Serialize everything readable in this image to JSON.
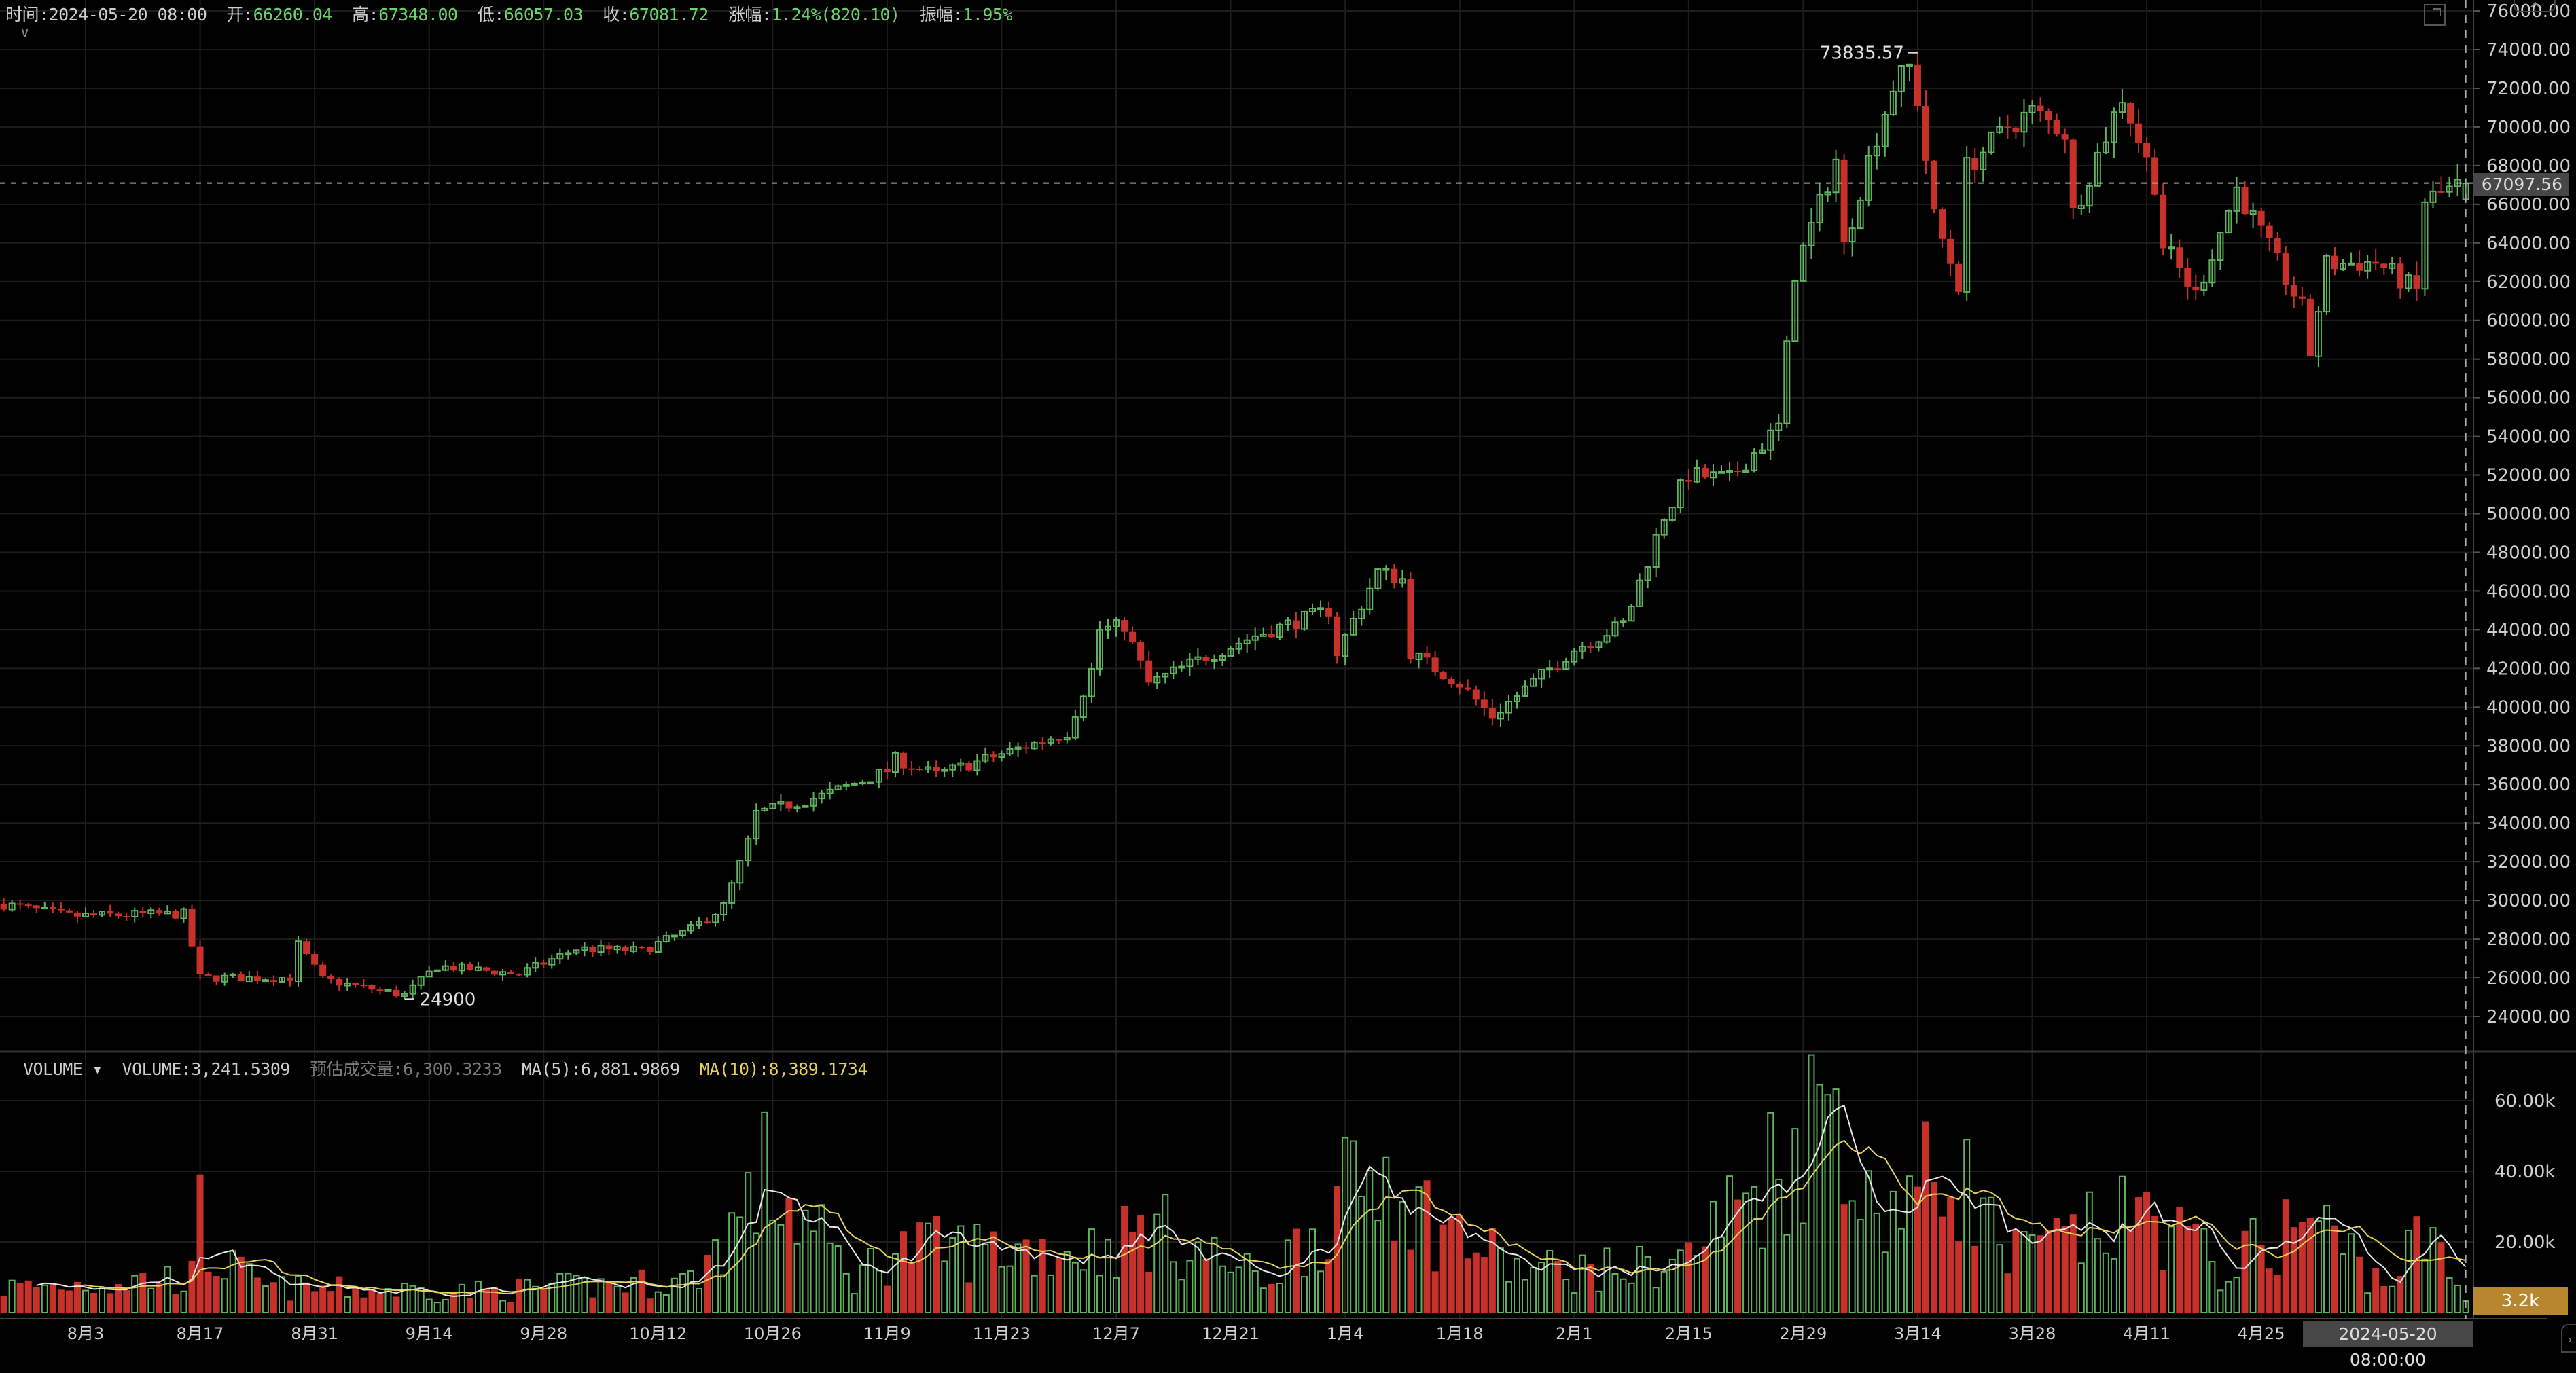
{
  "header": {
    "time_label": "时间:",
    "time": "2024-05-20 08:00",
    "open_label": "开:",
    "open": "66260.04",
    "high_label": "高:",
    "high": "67348.00",
    "low_label": "低:",
    "low": "66057.03",
    "close_label": "收:",
    "close": "67081.72",
    "change_label": "涨幅:",
    "change": "1.24%(820.10)",
    "amplitude_label": "振幅:",
    "amplitude": "1.95%"
  },
  "volume_header": {
    "indicator": "VOLUME",
    "volume": "VOLUME:3,241.5309",
    "estimated": "预估成交量:6,300.3233",
    "ma5": "MA(5):6,881.9869",
    "ma10": "MA(10):8,389.1734"
  },
  "colors": {
    "up": "#5fb35f",
    "down": "#c8302a",
    "ma5": "#e8e8e8",
    "ma10": "#e6d25a",
    "grid": "#1d1d1d",
    "volume_badge": "#b8862f"
  },
  "icons": {
    "collapse": "chevron-down-icon",
    "expand": "fullscreen-icon",
    "top_tab": "chevron-up-icon",
    "right_tab": "chevron-right-icon"
  },
  "crosshair": {
    "price": "67097.56",
    "date": "2024-05-20 08:00:00",
    "volume": "3.2k"
  },
  "chart_data": {
    "type": "candlestick",
    "interval": "1 day",
    "price_axis": {
      "ticks": [
        "76000.00",
        "74000.00",
        "72000.00",
        "70000.00",
        "68000.00",
        "66000.00",
        "64000.00",
        "62000.00",
        "60000.00",
        "58000.00",
        "56000.00",
        "54000.00",
        "52000.00",
        "50000.00",
        "48000.00",
        "46000.00",
        "44000.00",
        "42000.00",
        "40000.00",
        "38000.00",
        "36000.00",
        "34000.00",
        "32000.00",
        "30000.00",
        "28000.00",
        "26000.00",
        "24000.00"
      ]
    },
    "volume_axis": {
      "ticks": [
        "60.00k",
        "40.00k",
        "20.00k"
      ]
    },
    "date_axis": {
      "ticks": [
        "8月3",
        "8月17",
        "8月31",
        "9月14",
        "9月28",
        "10月12",
        "10月26",
        "11月9",
        "11月23",
        "12月7",
        "12月21",
        "1月4",
        "1月18",
        "2月1",
        "2月15",
        "2月29",
        "3月14",
        "3月28",
        "4月11",
        "4月25"
      ]
    },
    "annotations": {
      "max_label": "73835.57",
      "max_date": "2024-03-14",
      "min_label": "24900",
      "min_date": "2023-09-11"
    },
    "close_path": [
      [
        "2023-07-24",
        29800
      ],
      [
        "2023-08-01",
        29200
      ],
      [
        "2023-08-15",
        29300
      ],
      [
        "2023-08-17",
        26000
      ],
      [
        "2023-08-28",
        26000
      ],
      [
        "2023-08-29",
        27700
      ],
      [
        "2023-09-01",
        25900
      ],
      [
        "2023-09-11",
        25100
      ],
      [
        "2023-09-15",
        26600
      ],
      [
        "2023-09-25",
        26200
      ],
      [
        "2023-10-02",
        27500
      ],
      [
        "2023-10-10",
        27400
      ],
      [
        "2023-10-16",
        28500
      ],
      [
        "2023-10-20",
        29700
      ],
      [
        "2023-10-23",
        33000
      ],
      [
        "2023-10-24",
        34500
      ],
      [
        "2023-11-01",
        35400
      ],
      [
        "2023-11-09",
        36700
      ],
      [
        "2023-11-10",
        37300
      ],
      [
        "2023-11-15",
        36500
      ],
      [
        "2023-11-24",
        37700
      ],
      [
        "2023-12-01",
        38700
      ],
      [
        "2023-12-04",
        41900
      ],
      [
        "2023-12-05",
        44000
      ],
      [
        "2023-12-08",
        44200
      ],
      [
        "2023-12-11",
        41200
      ],
      [
        "2023-12-18",
        42600
      ],
      [
        "2023-12-24",
        43700
      ],
      [
        "2024-01-02",
        45000
      ],
      [
        "2024-01-03",
        42800
      ],
      [
        "2024-01-08",
        47000
      ],
      [
        "2024-01-11",
        46600
      ],
      [
        "2024-01-12",
        42800
      ],
      [
        "2024-01-18",
        41200
      ],
      [
        "2024-01-22",
        39500
      ],
      [
        "2024-01-23",
        39900
      ],
      [
        "2024-02-01",
        43000
      ],
      [
        "2024-02-07",
        44300
      ],
      [
        "2024-02-08",
        45300
      ],
      [
        "2024-02-12",
        49900
      ],
      [
        "2024-02-15",
        52000
      ],
      [
        "2024-02-20",
        51800
      ],
      [
        "2024-02-26",
        54500
      ],
      [
        "2024-02-28",
        62500
      ],
      [
        "2024-03-04",
        68300
      ],
      [
        "2024-03-05",
        63800
      ],
      [
        "2024-03-08",
        68300
      ],
      [
        "2024-03-11",
        72100
      ],
      [
        "2024-03-13",
        73100
      ],
      [
        "2024-03-14",
        71400
      ],
      [
        "2024-03-16",
        65300
      ],
      [
        "2024-03-19",
        61900
      ],
      [
        "2024-03-20",
        67900
      ],
      [
        "2024-03-25",
        70000
      ],
      [
        "2024-03-28",
        70800
      ],
      [
        "2024-04-01",
        69700
      ],
      [
        "2024-04-02",
        65500
      ],
      [
        "2024-04-08",
        71600
      ],
      [
        "2024-04-12",
        67100
      ],
      [
        "2024-04-13",
        63900
      ],
      [
        "2024-04-17",
        61300
      ],
      [
        "2024-04-22",
        66800
      ],
      [
        "2024-04-30",
        60600
      ],
      [
        "2024-05-01",
        58300
      ],
      [
        "2024-05-03",
        62900
      ],
      [
        "2024-05-09",
        63000
      ],
      [
        "2024-05-14",
        61500
      ],
      [
        "2024-05-15",
        66200
      ],
      [
        "2024-05-20",
        67081.72
      ]
    ],
    "last_candle": {
      "date": "2024-05-20",
      "open": 66260.04,
      "high": 67348.0,
      "low": 66057.03,
      "close": 67081.72,
      "volume_k": 3.24
    },
    "volume_path_k": [
      [
        "2023-07-24",
        7
      ],
      [
        "2023-08-16",
        10
      ],
      [
        "2023-08-17",
        27
      ],
      [
        "2023-08-18",
        16
      ],
      [
        "2023-08-25",
        7
      ],
      [
        "2023-09-20",
        6
      ],
      [
        "2023-10-16",
        9
      ],
      [
        "2023-10-23",
        30
      ],
      [
        "2023-10-25",
        38
      ],
      [
        "2023-11-05",
        10
      ],
      [
        "2023-11-10",
        18
      ],
      [
        "2023-12-05",
        18
      ],
      [
        "2023-12-11",
        24
      ],
      [
        "2023-12-25",
        9
      ],
      [
        "2024-01-03",
        30
      ],
      [
        "2024-01-11",
        46
      ],
      [
        "2024-01-12",
        30
      ],
      [
        "2024-01-25",
        12
      ],
      [
        "2024-02-08",
        12
      ],
      [
        "2024-02-15",
        16
      ],
      [
        "2024-02-28",
        48
      ],
      [
        "2024-03-05",
        66
      ],
      [
        "2024-03-07",
        28
      ],
      [
        "2024-03-19",
        40
      ],
      [
        "2024-03-25",
        15
      ],
      [
        "2024-04-12",
        28
      ],
      [
        "2024-04-20",
        12
      ],
      [
        "2024-05-01",
        27
      ],
      [
        "2024-05-10",
        8
      ],
      [
        "2024-05-15",
        22
      ],
      [
        "2024-05-20",
        3.24
      ]
    ]
  }
}
